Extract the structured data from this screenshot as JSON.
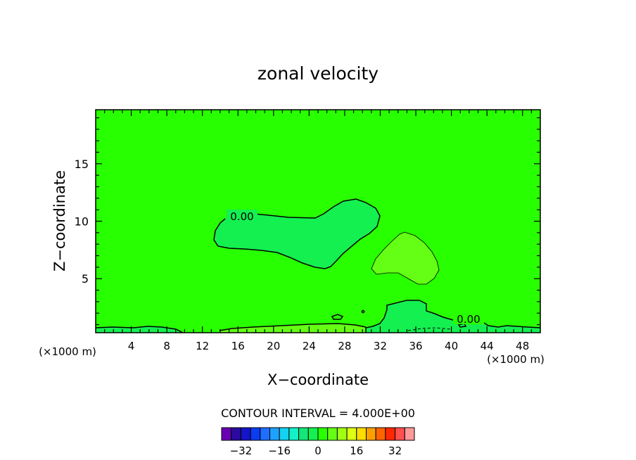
{
  "chart_data": {
    "type": "contour",
    "title": "zonal velocity",
    "xlabel": "X−coordinate",
    "ylabel": "Z−coordinate",
    "x_unit_left": "(×1000 m)",
    "x_unit_right": "(×1000 m)",
    "xlim": [
      0,
      50
    ],
    "ylim": [
      0.3,
      19.7
    ],
    "x_ticks": [
      "4",
      "8",
      "12",
      "16",
      "20",
      "24",
      "28",
      "32",
      "36",
      "40",
      "44",
      "48"
    ],
    "y_ticks": [
      "5",
      "10",
      "15"
    ],
    "contour_labels": [
      "0.00",
      "0.00"
    ],
    "contour_interval_text": "CONTOUR INTERVAL = 4.000E+00",
    "colorbar": {
      "tick_labels": [
        "−32",
        "−16",
        "0",
        "16",
        "32"
      ],
      "tick_values": [
        -32,
        -16,
        0,
        16,
        32
      ],
      "levels": [
        -36,
        -32,
        -28,
        -24,
        -20,
        -16,
        -12,
        -8,
        -4,
        0,
        4,
        8,
        12,
        16,
        20,
        24,
        28,
        32,
        36
      ],
      "colors": [
        "#6a00b4",
        "#2a0aa0",
        "#1414c8",
        "#0a3cf0",
        "#1e6eff",
        "#1ea0ff",
        "#14d2f0",
        "#14f0c8",
        "#14e678",
        "#14f050",
        "#28ff00",
        "#64ff14",
        "#a0ff14",
        "#dcff14",
        "#ffdc00",
        "#ffa000",
        "#ff6400",
        "#ff2800",
        "#ff5050",
        "#ff9a9a"
      ]
    },
    "background_color": "#28ff00",
    "region_color_negative": "#14f050",
    "region_color_positive": "#64ff14"
  }
}
